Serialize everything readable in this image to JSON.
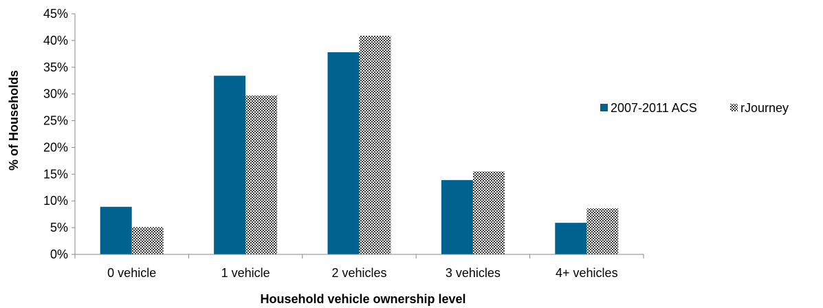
{
  "chart_data": {
    "type": "bar",
    "title": "",
    "xlabel": "Household vehicle ownership level",
    "ylabel": "% of Households",
    "categories": [
      "0 vehicle",
      "1 vehicle",
      "2 vehicles",
      "3 vehicles",
      "4+ vehicles"
    ],
    "series": [
      {
        "name": "2007-2011 ACS",
        "values": [
          8.9,
          33.4,
          37.8,
          13.9,
          5.9
        ],
        "color": "#00628f",
        "fill": "solid"
      },
      {
        "name": "rJourney",
        "values": [
          5.1,
          29.7,
          40.9,
          15.5,
          8.6
        ],
        "color": "#3a3a3a",
        "fill": "checkered"
      }
    ],
    "ylim": [
      0,
      45
    ],
    "yticks": [
      0,
      5,
      10,
      15,
      20,
      25,
      30,
      35,
      40,
      45
    ],
    "ytick_labels": [
      "0%",
      "5%",
      "10%",
      "15%",
      "20%",
      "25%",
      "30%",
      "35%",
      "40%",
      "45%"
    ],
    "grid": false,
    "legend_position": "right"
  }
}
